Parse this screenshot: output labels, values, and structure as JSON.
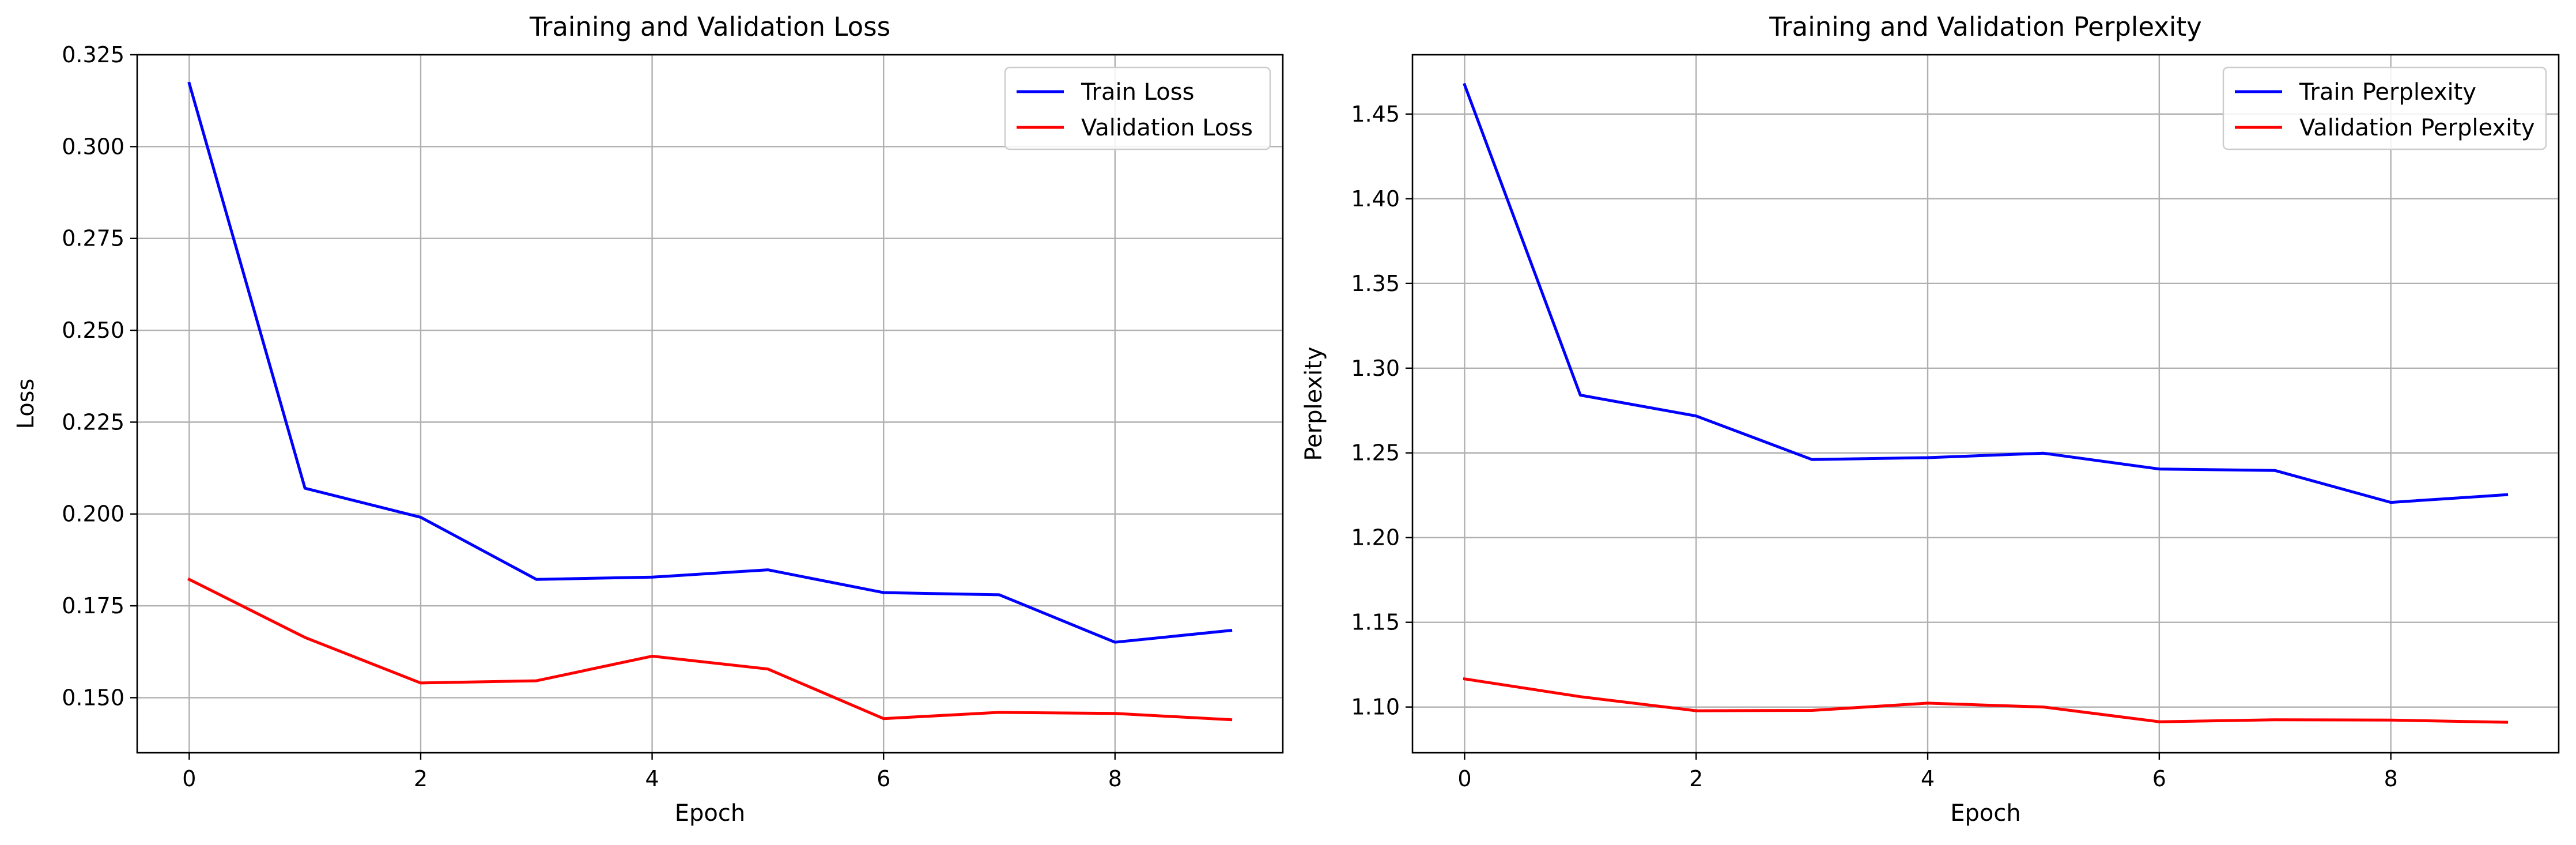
{
  "chart_data": [
    {
      "type": "line",
      "title": "Training and Validation Loss",
      "xlabel": "Epoch",
      "ylabel": "Loss",
      "x": [
        0,
        1,
        2,
        3,
        4,
        5,
        6,
        7,
        8,
        9
      ],
      "xlim": [
        -0.45,
        9.45
      ],
      "ylim": [
        0.135,
        0.325
      ],
      "xticks": [
        0,
        2,
        4,
        6,
        8
      ],
      "yticks": [
        0.15,
        0.175,
        0.2,
        0.225,
        0.25,
        0.275,
        0.3,
        0.325
      ],
      "ytick_labels": [
        "0.150",
        "0.175",
        "0.200",
        "0.225",
        "0.250",
        "0.275",
        "0.300",
        "0.325"
      ],
      "grid": true,
      "legend_position": "top-right",
      "series": [
        {
          "name": "Train Loss",
          "color": "#0000ff",
          "values": [
            0.3172,
            0.207,
            0.1991,
            0.1822,
            0.1828,
            0.1848,
            0.1786,
            0.178,
            0.1651,
            0.1683
          ]
        },
        {
          "name": "Validation Loss",
          "color": "#ff0000",
          "values": [
            0.1822,
            0.1664,
            0.154,
            0.1546,
            0.1613,
            0.1578,
            0.1443,
            0.146,
            0.1457,
            0.144
          ]
        }
      ]
    },
    {
      "type": "line",
      "title": "Training and Validation Perplexity",
      "xlabel": "Epoch",
      "ylabel": "Perplexity",
      "x": [
        0,
        1,
        2,
        3,
        4,
        5,
        6,
        7,
        8,
        9
      ],
      "xlim": [
        -0.45,
        9.45
      ],
      "ylim": [
        1.073,
        1.485
      ],
      "xticks": [
        0,
        2,
        4,
        6,
        8
      ],
      "yticks": [
        1.1,
        1.15,
        1.2,
        1.25,
        1.3,
        1.35,
        1.4,
        1.45
      ],
      "ytick_labels": [
        "1.10",
        "1.15",
        "1.20",
        "1.25",
        "1.30",
        "1.35",
        "1.40",
        "1.45"
      ],
      "grid": true,
      "legend_position": "top-right",
      "series": [
        {
          "name": "Train Perplexity",
          "color": "#0000ff",
          "values": [
            1.4673,
            1.2841,
            1.2718,
            1.2461,
            1.2472,
            1.2498,
            1.2405,
            1.2396,
            1.2208,
            1.2253
          ]
        },
        {
          "name": "Validation Perplexity",
          "color": "#ff0000",
          "values": [
            1.1166,
            1.1061,
            1.0978,
            1.098,
            1.1023,
            1.1,
            1.0913,
            1.0925,
            1.0923,
            1.091
          ]
        }
      ]
    }
  ]
}
